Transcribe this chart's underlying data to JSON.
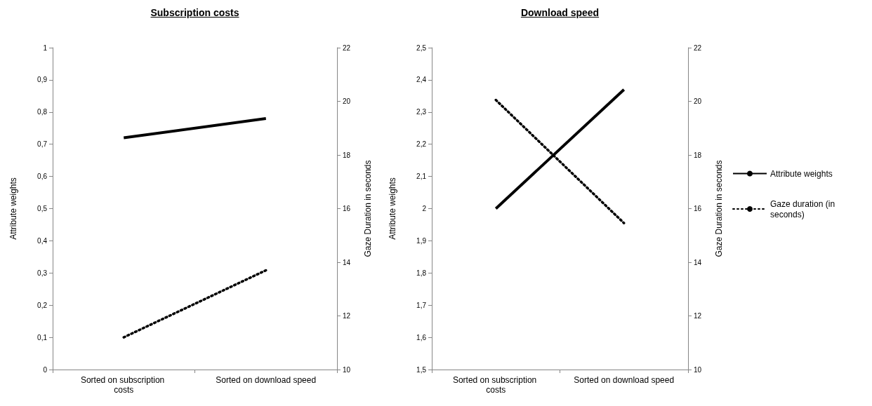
{
  "chart_data": [
    {
      "type": "line",
      "title": "Subscription costs",
      "ylabel": "Attribute weights",
      "y2label": "Gaze Duration in seconds",
      "categories": [
        "Sorted on subscription costs",
        "Sorted on download speed"
      ],
      "series": [
        {
          "color": "#000000",
          "values": [
            0.72,
            0.78
          ],
          "line_style": "solid"
        },
        {
          "color": "#000000",
          "values": [
            11.2,
            13.7
          ],
          "axis": "y2",
          "line_style": "dotted"
        }
      ],
      "ylim": [
        0,
        1
      ],
      "yticks": [
        0,
        {
          "value": 0.1,
          "label": "0,1"
        },
        {
          "value": 0.2,
          "label": "0,2"
        },
        {
          "value": 0.3,
          "label": "0,3"
        },
        {
          "value": 0.4,
          "label": "0,4"
        },
        {
          "value": 0.5,
          "label": "0,5"
        },
        {
          "value": 0.6,
          "label": "0,6"
        },
        {
          "value": 0.7,
          "label": "0,7"
        },
        {
          "value": 0.8,
          "label": "0,8"
        },
        {
          "value": 0.9,
          "label": "0,9"
        },
        1
      ],
      "y2lim": [
        10,
        22
      ],
      "y2ticks": [
        10,
        12,
        14,
        16,
        18,
        20,
        22
      ],
      "grid": false,
      "marker": "none",
      "legend": false
    },
    {
      "type": "line",
      "title": "Download speed",
      "ylabel": "Attribute weights",
      "y2label": "Gaze Duration in seconds",
      "categories": [
        "Sorted on subscription costs",
        "Sorted on download speed"
      ],
      "series": [
        {
          "name": "Attribute weights",
          "color": "#000000",
          "values": [
            2.0,
            2.37
          ],
          "line_style": "solid"
        },
        {
          "name": "Gaze duration (in seconds)",
          "color": "#000000",
          "values": [
            20.05,
            15.46
          ],
          "axis": "y2",
          "line_style": "dotted"
        }
      ],
      "ylim": [
        1.5,
        2.5
      ],
      "yticks": [
        {
          "value": 1.5,
          "label": "1,5"
        },
        {
          "value": 1.6,
          "label": "1,6"
        },
        {
          "value": 1.7,
          "label": "1,7"
        },
        {
          "value": 1.8,
          "label": "1,8"
        },
        {
          "value": 1.9,
          "label": "1,9"
        },
        2,
        {
          "value": 2.1,
          "label": "2,1"
        },
        {
          "value": 2.2,
          "label": "2,2"
        },
        {
          "value": 2.3,
          "label": "2,3"
        },
        {
          "value": 2.4,
          "label": "2,4"
        },
        {
          "value": 2.5,
          "label": "2,5"
        }
      ],
      "y2lim": [
        10,
        22
      ],
      "y2ticks": [
        10,
        12,
        14,
        16,
        18,
        20,
        22
      ],
      "grid": false,
      "marker": "none",
      "legend": "right"
    }
  ]
}
